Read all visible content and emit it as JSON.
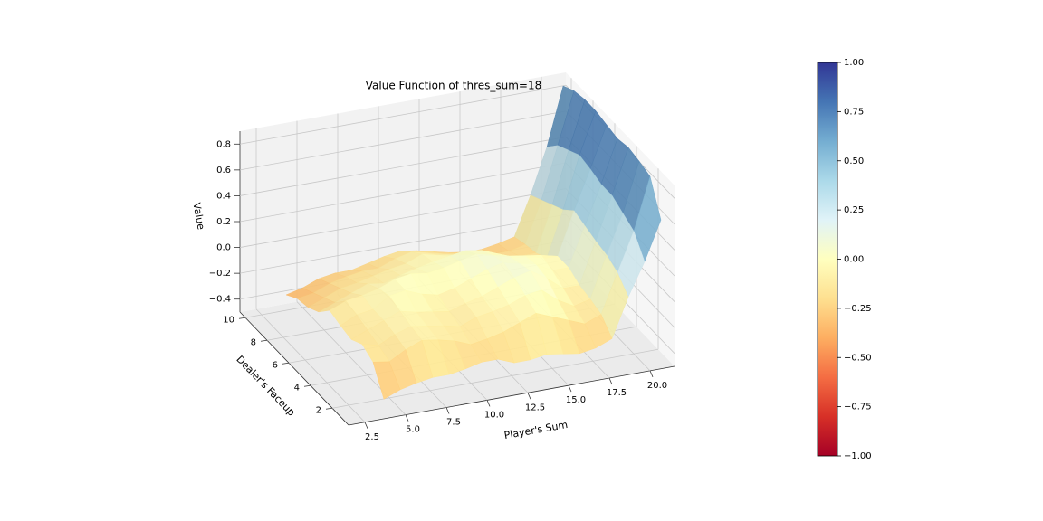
{
  "chart_data": {
    "type": "surface",
    "title": "Value Function of thres_sum=18",
    "xlabel": "Player's Sum",
    "ylabel": "Dealer's Faceup",
    "zlabel": "Value",
    "x": [
      4,
      5,
      6,
      7,
      8,
      9,
      10,
      11,
      12,
      13,
      14,
      15,
      16,
      17,
      18,
      19,
      20,
      21
    ],
    "y": [
      1,
      2,
      3,
      4,
      5,
      6,
      7,
      8,
      9,
      10
    ],
    "values": [
      [
        -0.4,
        -0.35,
        -0.32,
        -0.3,
        -0.3,
        -0.28,
        -0.25,
        -0.25,
        -0.3,
        -0.3,
        -0.28,
        -0.3,
        -0.32,
        -0.3,
        -0.25,
        0.05,
        0.3,
        0.6
      ],
      [
        -0.2,
        -0.22,
        -0.15,
        -0.1,
        -0.12,
        -0.15,
        -0.2,
        -0.18,
        -0.15,
        -0.1,
        -0.05,
        -0.1,
        -0.15,
        -0.2,
        -0.15,
        0.15,
        0.45,
        0.85
      ],
      [
        -0.15,
        -0.18,
        -0.12,
        -0.08,
        -0.1,
        -0.12,
        -0.15,
        -0.1,
        -0.08,
        -0.05,
        0.0,
        0.02,
        -0.08,
        -0.15,
        -0.12,
        0.2,
        0.5,
        0.88
      ],
      [
        -0.2,
        -0.15,
        -0.1,
        -0.05,
        -0.08,
        -0.1,
        -0.12,
        -0.08,
        -0.05,
        0.0,
        0.05,
        0.08,
        0.0,
        -0.1,
        -0.1,
        0.22,
        0.55,
        0.9
      ],
      [
        -0.18,
        -0.12,
        -0.1,
        -0.02,
        0.0,
        -0.05,
        -0.08,
        -0.05,
        0.0,
        0.05,
        0.08,
        0.05,
        0.02,
        -0.05,
        -0.05,
        0.25,
        0.55,
        0.88
      ],
      [
        -0.15,
        -0.1,
        -0.08,
        -0.05,
        0.0,
        0.02,
        0.0,
        0.02,
        0.05,
        0.08,
        0.05,
        0.02,
        0.0,
        -0.02,
        -0.05,
        0.28,
        0.58,
        0.9
      ],
      [
        -0.25,
        -0.2,
        -0.15,
        -0.1,
        -0.12,
        -0.08,
        -0.05,
        -0.02,
        0.0,
        0.02,
        0.0,
        -0.05,
        -0.1,
        -0.12,
        -0.15,
        0.2,
        0.6,
        0.92
      ],
      [
        -0.3,
        -0.25,
        -0.2,
        -0.18,
        -0.15,
        -0.12,
        -0.1,
        -0.05,
        -0.08,
        -0.1,
        -0.12,
        -0.15,
        -0.18,
        -0.2,
        -0.2,
        0.15,
        0.55,
        0.92
      ],
      [
        -0.32,
        -0.3,
        -0.25,
        -0.22,
        -0.2,
        -0.2,
        -0.15,
        -0.12,
        -0.15,
        -0.18,
        -0.2,
        -0.22,
        -0.25,
        -0.25,
        -0.22,
        0.1,
        0.5,
        0.9
      ],
      [
        -0.38,
        -0.35,
        -0.3,
        -0.28,
        -0.28,
        -0.25,
        -0.22,
        -0.2,
        -0.22,
        -0.25,
        -0.28,
        -0.3,
        -0.3,
        -0.28,
        -0.25,
        0.05,
        0.4,
        0.85
      ]
    ],
    "xlim": [
      1.5,
      21.5
    ],
    "ylim": [
      0.5,
      10.5
    ],
    "zlim": [
      -0.5,
      0.9
    ],
    "xticks": [
      {
        "value": 2.5,
        "label": "2.5"
      },
      {
        "value": 5,
        "label": "5.0"
      },
      {
        "value": 7.5,
        "label": "7.5"
      },
      {
        "value": 10,
        "label": "10.0"
      },
      {
        "value": 12.5,
        "label": "12.5"
      },
      {
        "value": 15,
        "label": "15.0"
      },
      {
        "value": 17.5,
        "label": "17.5"
      },
      {
        "value": 20,
        "label": "20.0"
      }
    ],
    "yticks": [
      2,
      4,
      6,
      8,
      10
    ],
    "zticks": [
      {
        "value": -0.4,
        "label": "−0.4"
      },
      {
        "value": -0.2,
        "label": "−0.2"
      },
      {
        "value": 0,
        "label": "0.0"
      },
      0.2,
      0.4,
      0.6,
      0.8
    ],
    "colormap": "RdYlBu",
    "clim": [
      -1,
      1
    ],
    "cticks": [
      {
        "value": -1,
        "label": "−1.00"
      },
      {
        "value": -0.75,
        "label": "−0.75"
      },
      {
        "value": -0.5,
        "label": "−0.50"
      },
      {
        "value": -0.25,
        "label": "−0.25"
      },
      {
        "value": 0,
        "label": "0.00"
      },
      {
        "value": 0.25,
        "label": "0.25"
      },
      {
        "value": 0.5,
        "label": "0.50"
      },
      {
        "value": 0.75,
        "label": "0.75"
      },
      {
        "value": 1,
        "label": "1.00"
      }
    ],
    "grid": true
  }
}
